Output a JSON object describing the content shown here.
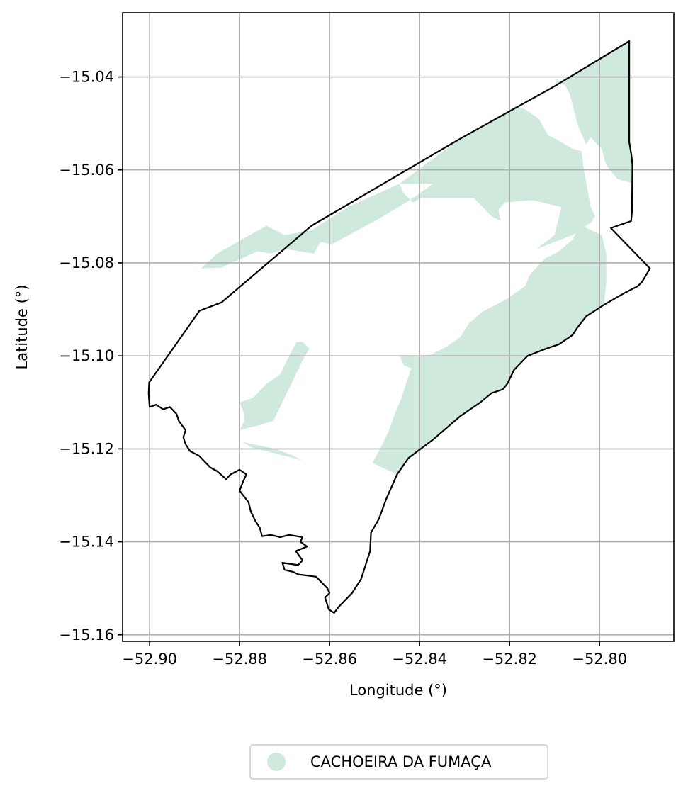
{
  "chart_data": {
    "type": "map",
    "xlabel": "Longitude (°)",
    "ylabel": "Latitude (°)",
    "xlim": [
      -52.906,
      -52.7835
    ],
    "ylim": [
      -15.1614,
      -15.0262
    ],
    "xticks": [
      -52.9,
      -52.88,
      -52.86,
      -52.84,
      -52.82,
      -52.8
    ],
    "xtick_labels": [
      "−52.90",
      "−52.88",
      "−52.86",
      "−52.84",
      "−52.82",
      "−52.80"
    ],
    "yticks": [
      -15.04,
      -15.06,
      -15.08,
      -15.1,
      -15.12,
      -15.14,
      -15.16
    ],
    "ytick_labels": [
      "−15.04",
      "−15.06",
      "−15.08",
      "−15.10",
      "−15.12",
      "−15.14",
      "−15.16"
    ],
    "grid": true,
    "legend": {
      "placement": "bottom-center",
      "entries": [
        {
          "label": "CACHOEIRA DA FUMAÇA",
          "color": "#cfeadd"
        }
      ]
    },
    "boundary": {
      "stroke": "#000000",
      "coordinates": [
        [
          -52.9001,
          -15.1057
        ],
        [
          -52.8889,
          -15.0903
        ],
        [
          -52.884,
          -15.0885
        ],
        [
          -52.864,
          -15.072
        ],
        [
          -52.831,
          -15.0533
        ],
        [
          -52.81,
          -15.042
        ],
        [
          -52.7934,
          -15.0323
        ],
        [
          -52.7934,
          -15.054
        ],
        [
          -52.7929,
          -15.057
        ],
        [
          -52.7927,
          -15.059
        ],
        [
          -52.7928,
          -15.069
        ],
        [
          -52.793,
          -15.071
        ],
        [
          -52.7975,
          -15.0725
        ],
        [
          -52.7888,
          -15.0812
        ],
        [
          -52.7905,
          -15.084
        ],
        [
          -52.7915,
          -15.085
        ],
        [
          -52.7945,
          -15.0865
        ],
        [
          -52.799,
          -15.089
        ],
        [
          -52.803,
          -15.0915
        ],
        [
          -52.805,
          -15.094
        ],
        [
          -52.806,
          -15.0955
        ],
        [
          -52.809,
          -15.0975
        ],
        [
          -52.812,
          -15.0985
        ],
        [
          -52.816,
          -15.1
        ],
        [
          -52.8175,
          -15.1015
        ],
        [
          -52.819,
          -15.103
        ],
        [
          -52.8205,
          -15.106
        ],
        [
          -52.8215,
          -15.1072
        ],
        [
          -52.824,
          -15.108
        ],
        [
          -52.8265,
          -15.11
        ],
        [
          -52.831,
          -15.113
        ],
        [
          -52.837,
          -15.118
        ],
        [
          -52.8425,
          -15.122
        ],
        [
          -52.845,
          -15.1255
        ],
        [
          -52.8475,
          -15.131
        ],
        [
          -52.849,
          -15.135
        ],
        [
          -52.8508,
          -15.138
        ],
        [
          -52.851,
          -15.142
        ],
        [
          -52.853,
          -15.148
        ],
        [
          -52.855,
          -15.151
        ],
        [
          -52.858,
          -15.154
        ],
        [
          -52.859,
          -15.1553
        ],
        [
          -52.8602,
          -15.1545
        ],
        [
          -52.861,
          -15.152
        ],
        [
          -52.86,
          -15.151
        ],
        [
          -52.8605,
          -15.15
        ],
        [
          -52.863,
          -15.1475
        ],
        [
          -52.867,
          -15.147
        ],
        [
          -52.868,
          -15.1465
        ],
        [
          -52.87,
          -15.146
        ],
        [
          -52.8705,
          -15.1445
        ],
        [
          -52.867,
          -15.145
        ],
        [
          -52.866,
          -15.144
        ],
        [
          -52.8675,
          -15.142
        ],
        [
          -52.865,
          -15.141
        ],
        [
          -52.8665,
          -15.14
        ],
        [
          -52.866,
          -15.139
        ],
        [
          -52.869,
          -15.1385
        ],
        [
          -52.871,
          -15.139
        ],
        [
          -52.873,
          -15.1385
        ],
        [
          -52.875,
          -15.1388
        ],
        [
          -52.8755,
          -15.137
        ],
        [
          -52.8765,
          -15.1355
        ],
        [
          -52.8775,
          -15.1335
        ],
        [
          -52.878,
          -15.1315
        ],
        [
          -52.88,
          -15.129
        ],
        [
          -52.8792,
          -15.127
        ],
        [
          -52.8785,
          -15.1255
        ],
        [
          -52.88,
          -15.1245
        ],
        [
          -52.882,
          -15.1255
        ],
        [
          -52.883,
          -15.1265
        ],
        [
          -52.885,
          -15.1248
        ],
        [
          -52.8865,
          -15.124
        ],
        [
          -52.888,
          -15.1225
        ],
        [
          -52.889,
          -15.1215
        ],
        [
          -52.891,
          -15.1205
        ],
        [
          -52.892,
          -15.119
        ],
        [
          -52.8925,
          -15.1175
        ],
        [
          -52.892,
          -15.116
        ],
        [
          -52.8935,
          -15.114
        ],
        [
          -52.894,
          -15.1125
        ],
        [
          -52.8955,
          -15.111
        ],
        [
          -52.897,
          -15.1115
        ],
        [
          -52.8985,
          -15.1105
        ],
        [
          -52.9,
          -15.111
        ],
        [
          -52.9002,
          -15.108
        ],
        [
          -52.9001,
          -15.1057
        ]
      ]
    },
    "series": [
      {
        "color": "#cfeadd",
        "polygons": [
          [
            [
              -52.81,
              -15.042
            ],
            [
              -52.7934,
              -15.0323
            ],
            [
              -52.7934,
              -15.054
            ],
            [
              -52.7929,
              -15.057
            ],
            [
              -52.7927,
              -15.059
            ],
            [
              -52.7929,
              -15.0628
            ],
            [
              -52.796,
              -15.062
            ],
            [
              -52.7985,
              -15.059
            ],
            [
              -52.7995,
              -15.0555
            ],
            [
              -52.801,
              -15.054
            ],
            [
              -52.802,
              -15.053
            ],
            [
              -52.803,
              -15.0545
            ],
            [
              -52.8048,
              -15.0505
            ],
            [
              -52.8065,
              -15.044
            ],
            [
              -52.8075,
              -15.042
            ],
            [
              -52.8095,
              -15.0405
            ]
          ],
          [
            [
              -52.8885,
              -15.0812
            ],
            [
              -52.885,
              -15.078
            ],
            [
              -52.874,
              -15.072
            ],
            [
              -52.87,
              -15.074
            ],
            [
              -52.864,
              -15.073
            ],
            [
              -52.856,
              -15.068
            ],
            [
              -52.8445,
              -15.063
            ],
            [
              -52.8435,
              -15.065
            ],
            [
              -52.8415,
              -15.067
            ],
            [
              -52.8395,
              -15.066
            ],
            [
              -52.828,
              -15.066
            ],
            [
              -52.826,
              -15.068
            ],
            [
              -52.824,
              -15.07
            ],
            [
              -52.822,
              -15.071
            ],
            [
              -52.8225,
              -15.0685
            ],
            [
              -52.821,
              -15.067
            ],
            [
              -52.815,
              -15.0665
            ],
            [
              -52.8085,
              -15.068
            ],
            [
              -52.81,
              -15.074
            ],
            [
              -52.814,
              -15.077
            ],
            [
              -52.806,
              -15.074
            ],
            [
              -52.8015,
              -15.071
            ],
            [
              -52.802,
              -15.068
            ],
            [
              -52.8035,
              -15.06
            ],
            [
              -52.804,
              -15.056
            ],
            [
              -52.809,
              -15.0545
            ],
            [
              -52.8165,
              -15.0555
            ],
            [
              -52.822,
              -15.0555
            ],
            [
              -52.825,
              -15.0575
            ],
            [
              -52.826,
              -15.059
            ],
            [
              -52.829,
              -15.06
            ],
            [
              -52.833,
              -15.061
            ],
            [
              -52.837,
              -15.063
            ],
            [
              -52.84,
              -15.065
            ],
            [
              -52.843,
              -15.067
            ],
            [
              -52.849,
              -15.0705
            ],
            [
              -52.8595,
              -15.076
            ],
            [
              -52.862,
              -15.0755
            ],
            [
              -52.8635,
              -15.078
            ],
            [
              -52.87,
              -15.077
            ],
            [
              -52.873,
              -15.078
            ],
            [
              -52.876,
              -15.0775
            ],
            [
              -52.884,
              -15.081
            ]
          ],
          [
            [
              -52.8445,
              -15.063
            ],
            [
              -52.831,
              -15.0533
            ],
            [
              -52.8185,
              -15.0462
            ],
            [
              -52.8165,
              -15.047
            ],
            [
              -52.8135,
              -15.049
            ],
            [
              -52.8115,
              -15.0525
            ],
            [
              -52.8085,
              -15.054
            ],
            [
              -52.806,
              -15.0555
            ],
            [
              -52.8045,
              -15.0575
            ],
            [
              -52.8035,
              -15.06
            ],
            [
              -52.802,
              -15.068
            ],
            [
              -52.801,
              -15.07
            ],
            [
              -52.803,
              -15.072
            ],
            [
              -52.805,
              -15.073
            ],
            [
              -52.806,
              -15.075
            ],
            [
              -52.809,
              -15.0775
            ],
            [
              -52.812,
              -15.079
            ],
            [
              -52.814,
              -15.081
            ],
            [
              -52.8155,
              -15.0825
            ],
            [
              -52.8165,
              -15.085
            ],
            [
              -52.821,
              -15.088
            ],
            [
              -52.826,
              -15.0905
            ],
            [
              -52.829,
              -15.093
            ],
            [
              -52.831,
              -15.096
            ],
            [
              -52.834,
              -15.098
            ],
            [
              -52.838,
              -15.1
            ],
            [
              -52.842,
              -15.103
            ],
            [
              -52.843,
              -15.106
            ],
            [
              -52.844,
              -15.109
            ],
            [
              -52.8455,
              -15.1125
            ],
            [
              -52.847,
              -15.1165
            ],
            [
              -52.8485,
              -15.1195
            ],
            [
              -52.8505,
              -15.123
            ],
            [
              -52.845,
              -15.1255
            ],
            [
              -52.8425,
              -15.122
            ],
            [
              -52.837,
              -15.118
            ],
            [
              -52.831,
              -15.113
            ],
            [
              -52.8265,
              -15.11
            ],
            [
              -52.824,
              -15.108
            ],
            [
              -52.8215,
              -15.1072
            ],
            [
              -52.8205,
              -15.106
            ],
            [
              -52.819,
              -15.103
            ],
            [
              -52.8175,
              -15.1015
            ],
            [
              -52.816,
              -15.1
            ],
            [
              -52.812,
              -15.0985
            ],
            [
              -52.809,
              -15.0975
            ],
            [
              -52.806,
              -15.0955
            ],
            [
              -52.805,
              -15.094
            ],
            [
              -52.803,
              -15.0915
            ],
            [
              -52.799,
              -15.089
            ],
            [
              -52.7985,
              -15.084
            ],
            [
              -52.7985,
              -15.078
            ],
            [
              -52.7995,
              -15.074
            ],
            [
              -52.804,
              -15.072
            ],
            [
              -52.8075,
              -15.07
            ],
            [
              -52.809,
              -15.067
            ],
            [
              -52.813,
              -15.064
            ],
            [
              -52.82,
              -15.062
            ],
            [
              -52.827,
              -15.063
            ],
            [
              -52.834,
              -15.063
            ],
            [
              -52.84,
              -15.063
            ]
          ],
          [
            [
              -52.8673,
              -15.097
            ],
            [
              -52.866,
              -15.097
            ],
            [
              -52.8645,
              -15.0985
            ],
            [
              -52.8655,
              -15.1
            ],
            [
              -52.8675,
              -15.104
            ],
            [
              -52.87,
              -15.109
            ],
            [
              -52.8725,
              -15.114
            ],
            [
              -52.876,
              -15.115
            ],
            [
              -52.88,
              -15.116
            ],
            [
              -52.879,
              -15.114
            ],
            [
              -52.879,
              -15.1125
            ],
            [
              -52.8795,
              -15.111
            ],
            [
              -52.88,
              -15.11
            ],
            [
              -52.877,
              -15.109
            ],
            [
              -52.874,
              -15.106
            ],
            [
              -52.871,
              -15.104
            ],
            [
              -52.87,
              -15.102
            ],
            [
              -52.869,
              -15.1
            ]
          ],
          [
            [
              -52.8795,
              -15.1185
            ],
            [
              -52.872,
              -15.12
            ],
            [
              -52.868,
              -15.1215
            ],
            [
              -52.866,
              -15.1225
            ],
            [
              -52.872,
              -15.121
            ],
            [
              -52.877,
              -15.1198
            ]
          ],
          [
            [
              -52.8445,
              -15.0998
            ],
            [
              -52.84,
              -15.1
            ],
            [
              -52.8355,
              -15.0995
            ],
            [
              -52.8365,
              -15.104
            ],
            [
              -52.841,
              -15.103
            ],
            [
              -52.8435,
              -15.102
            ]
          ]
        ]
      }
    ]
  }
}
